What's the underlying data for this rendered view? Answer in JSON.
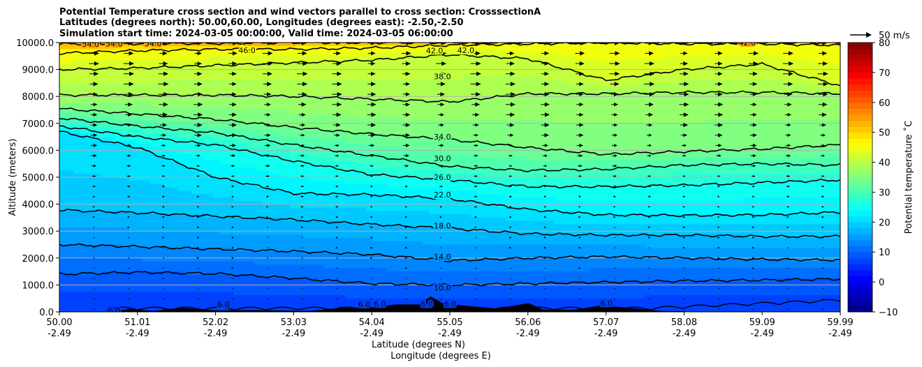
{
  "chart_data": {
    "type": "contour",
    "title_lines": [
      "Potential Temperature cross section and wind vectors parallel to cross section: CrosssectionA",
      "Latitudes (degrees north): 50.00,60.00, Longitudes (degrees east): -2.50,-2.50",
      "Simulation start time: 2024-03-05 00:00:00, Valid time: 2024-03-05 06:00:00"
    ],
    "xlabel_lines": [
      "Latitude (degrees N)",
      "Longitude (degrees E)"
    ],
    "ylabel": "Altitude (meters)",
    "x_ticks": [
      {
        "lat": "50.00",
        "lon": "-2.49"
      },
      {
        "lat": "51.01",
        "lon": "-2.49"
      },
      {
        "lat": "52.02",
        "lon": "-2.49"
      },
      {
        "lat": "53.03",
        "lon": "-2.49"
      },
      {
        "lat": "54.04",
        "lon": "-2.49"
      },
      {
        "lat": "55.05",
        "lon": "-2.49"
      },
      {
        "lat": "56.06",
        "lon": "-2.49"
      },
      {
        "lat": "57.07",
        "lon": "-2.49"
      },
      {
        "lat": "58.08",
        "lon": "-2.49"
      },
      {
        "lat": "59.09",
        "lon": "-2.49"
      },
      {
        "lat": "59.99",
        "lon": "-2.49"
      }
    ],
    "xlim": [
      50.0,
      59.99
    ],
    "y_ticks": [
      "0.0",
      "1000.0",
      "2000.0",
      "3000.0",
      "4000.0",
      "5000.0",
      "6000.0",
      "7000.0",
      "8000.0",
      "9000.0",
      "10000.0"
    ],
    "ylim": [
      0,
      10000
    ],
    "grid": "horizontal lines",
    "colorbar": {
      "label": "Potential temperature ˚C",
      "range": [
        -10,
        80
      ],
      "ticks": [
        "−10",
        "0",
        "10",
        "20",
        "30",
        "40",
        "50",
        "60",
        "70",
        "80"
      ],
      "colormap": "jet"
    },
    "quiver_key": "50 m/s",
    "contours": [
      {
        "level": "6.0",
        "profile": [
          0,
          0,
          0,
          0,
          0,
          0,
          0,
          0,
          0,
          0,
          0
        ]
      },
      {
        "level": "10.0",
        "profile": [
          1400,
          1470,
          1420,
          1250,
          1050,
          1000,
          1050,
          1100,
          1150,
          1180,
          1220
        ]
      },
      {
        "level": "14.0",
        "profile": [
          2500,
          2420,
          2330,
          2250,
          2130,
          1900,
          2000,
          2050,
          2000,
          1950,
          1920
        ]
      },
      {
        "level": "18.0",
        "profile": [
          3780,
          3680,
          3550,
          3420,
          3250,
          3100,
          2900,
          2850,
          2850,
          2800,
          2800
        ]
      },
      {
        "level": "22.0",
        "profile": [
          6700,
          6100,
          5000,
          4400,
          4350,
          4200,
          3800,
          3600,
          3580,
          3600,
          3700
        ]
      },
      {
        "level": "26.0",
        "profile": [
          6900,
          6500,
          6200,
          5600,
          5100,
          4900,
          4650,
          4650,
          4700,
          4800,
          4900
        ]
      },
      {
        "level": "30.0",
        "profile": [
          7200,
          6900,
          6650,
          6200,
          5800,
          5400,
          5250,
          5300,
          5450,
          5500,
          5450
        ]
      },
      {
        "level": "34.0",
        "profile": [
          7550,
          7350,
          7150,
          6850,
          6600,
          6400,
          6100,
          5850,
          5950,
          6050,
          6200
        ]
      },
      {
        "level": "38.0",
        "profile": [
          8050,
          8050,
          8050,
          8000,
          7900,
          7800,
          8100,
          8100,
          8150,
          8150,
          8100
        ]
      },
      {
        "level": "42.0",
        "profile": [
          9000,
          9050,
          9150,
          9250,
          9350,
          9550,
          9400,
          8600,
          9000,
          9200,
          8400
        ]
      },
      {
        "level": "46.0",
        "profile": [
          9600,
          9700,
          9750,
          9750,
          9800,
          9900,
          9950,
          10000,
          9950,
          9950,
          9900
        ]
      },
      {
        "level": "54.0",
        "profile": [
          9950,
          9960,
          9970,
          10000,
          10000,
          10000,
          10000,
          10000,
          10000,
          10000,
          10000
        ]
      }
    ],
    "contour_labels": [
      {
        "text": "54.0",
        "lat": 50.4,
        "alt": 9950
      },
      {
        "text": "54.0",
        "lat": 50.7,
        "alt": 9960
      },
      {
        "text": "54.0",
        "lat": 51.2,
        "alt": 9970
      },
      {
        "text": "46.0",
        "lat": 52.4,
        "alt": 9720
      },
      {
        "text": "42.0",
        "lat": 54.8,
        "alt": 9700
      },
      {
        "text": "42.0",
        "lat": 55.2,
        "alt": 9720
      },
      {
        "text": "42.0",
        "lat": 58.8,
        "alt": 10000
      },
      {
        "text": "38.0",
        "lat": 54.9,
        "alt": 8750
      },
      {
        "text": "34.0",
        "lat": 54.9,
        "alt": 6500
      },
      {
        "text": "30.0",
        "lat": 54.9,
        "alt": 5700
      },
      {
        "text": "26.0",
        "lat": 54.9,
        "alt": 5000
      },
      {
        "text": "22.0",
        "lat": 54.9,
        "alt": 4350
      },
      {
        "text": "18.0",
        "lat": 54.9,
        "alt": 3200
      },
      {
        "text": "14.0",
        "lat": 54.9,
        "alt": 2050
      },
      {
        "text": "10.0",
        "lat": 54.9,
        "alt": 900
      },
      {
        "text": "6.0",
        "lat": 50.7,
        "alt": 60
      },
      {
        "text": "6.0",
        "lat": 52.1,
        "alt": 280
      },
      {
        "text": "6.0",
        "lat": 53.9,
        "alt": 280
      },
      {
        "text": "6.0",
        "lat": 54.1,
        "alt": 300
      },
      {
        "text": "6.0",
        "lat": 54.7,
        "alt": 300
      },
      {
        "text": "6.0",
        "lat": 55.0,
        "alt": 300
      },
      {
        "text": "6.0",
        "lat": 57.0,
        "alt": 320
      }
    ],
    "terrain": [
      {
        "lat": 50.6,
        "alt": 0
      },
      {
        "lat": 50.9,
        "alt": 80
      },
      {
        "lat": 51.2,
        "alt": 60
      },
      {
        "lat": 51.6,
        "alt": 120
      },
      {
        "lat": 52.0,
        "alt": 80
      },
      {
        "lat": 52.5,
        "alt": 40
      },
      {
        "lat": 53.2,
        "alt": 60
      },
      {
        "lat": 53.6,
        "alt": 120
      },
      {
        "lat": 54.0,
        "alt": 200
      },
      {
        "lat": 54.3,
        "alt": 250
      },
      {
        "lat": 54.6,
        "alt": 300
      },
      {
        "lat": 54.75,
        "alt": 550
      },
      {
        "lat": 54.9,
        "alt": 350
      },
      {
        "lat": 55.2,
        "alt": 200
      },
      {
        "lat": 55.6,
        "alt": 150
      },
      {
        "lat": 56.0,
        "alt": 300
      },
      {
        "lat": 56.2,
        "alt": 100
      },
      {
        "lat": 56.6,
        "alt": 60
      },
      {
        "lat": 56.9,
        "alt": 250
      },
      {
        "lat": 57.2,
        "alt": 150
      },
      {
        "lat": 57.7,
        "alt": 60
      },
      {
        "lat": 58.0,
        "alt": 0
      }
    ],
    "wind_profile_m_s": [
      {
        "alt": 100,
        "speed": 3
      },
      {
        "alt": 1000,
        "speed": 4
      },
      {
        "alt": 2000,
        "speed": 5
      },
      {
        "alt": 3000,
        "speed": 6
      },
      {
        "alt": 4000,
        "speed": 7
      },
      {
        "alt": 5000,
        "speed": 10
      },
      {
        "alt": 6000,
        "speed": 16
      },
      {
        "alt": 7000,
        "speed": 22
      },
      {
        "alt": 8000,
        "speed": 26
      },
      {
        "alt": 9000,
        "speed": 28
      },
      {
        "alt": 10000,
        "speed": 26
      }
    ]
  }
}
